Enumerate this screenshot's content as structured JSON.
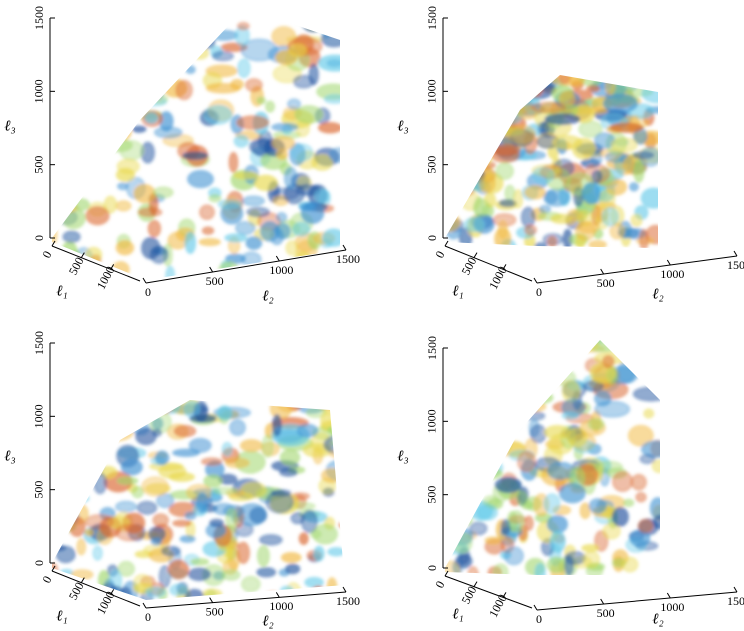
{
  "chart_data": [
    {
      "type": "volume3d",
      "xlabel": "ℓ₁",
      "ylabel": "ℓ₂",
      "zlabel": "ℓ₃",
      "xlim": [
        0,
        1500
      ],
      "ylim": [
        0,
        1500
      ],
      "zlim": [
        0,
        1500
      ],
      "xticks": [
        0,
        500,
        1000
      ],
      "yticks": [
        0,
        500,
        1000,
        1500
      ],
      "zticks": [
        0,
        500,
        1000,
        1500
      ]
    },
    {
      "type": "volume3d",
      "xlabel": "ℓ₁",
      "ylabel": "ℓ₂",
      "zlabel": "ℓ₃",
      "xlim": [
        0,
        1500
      ],
      "ylim": [
        0,
        1500
      ],
      "zlim": [
        0,
        1500
      ],
      "xticks": [
        0,
        500,
        1000
      ],
      "yticks": [
        0,
        500,
        1000,
        1500
      ],
      "zticks": [
        0,
        500,
        1000,
        1500
      ]
    },
    {
      "type": "volume3d",
      "xlabel": "ℓ₁",
      "ylabel": "ℓ₂",
      "zlabel": "ℓ₃",
      "xlim": [
        0,
        1500
      ],
      "ylim": [
        0,
        1500
      ],
      "zlim": [
        0,
        1500
      ],
      "xticks": [
        0,
        500,
        1000
      ],
      "yticks": [
        0,
        500,
        1000,
        1500
      ],
      "zticks": [
        0,
        500,
        1000,
        1500
      ]
    },
    {
      "type": "volume3d",
      "xlabel": "ℓ₁",
      "ylabel": "ℓ₂",
      "zlabel": "ℓ₃",
      "xlim": [
        0,
        1500
      ],
      "ylim": [
        0,
        1500
      ],
      "zlim": [
        0,
        1500
      ],
      "xticks": [
        0,
        500,
        1000
      ],
      "yticks": [
        0,
        500,
        1000,
        1500
      ],
      "zticks": [
        0,
        500,
        1000,
        1500
      ]
    }
  ]
}
